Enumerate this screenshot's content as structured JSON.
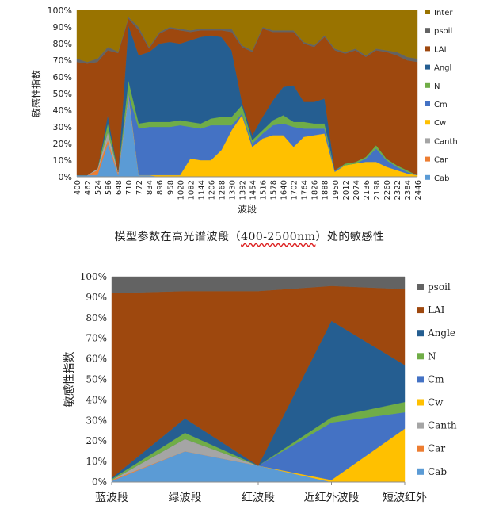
{
  "caption": {
    "before": "模型参数在高光谱波段（",
    "range": "400-2500nm",
    "after": "）处的敏感性"
  },
  "chart_data": [
    {
      "type": "area",
      "stacked": true,
      "title": "",
      "xlabel": "波段",
      "ylabel": "敏感性指数",
      "ylim": [
        0,
        100
      ],
      "y_ticks": [
        "0%",
        "10%",
        "20%",
        "30%",
        "40%",
        "50%",
        "60%",
        "70%",
        "80%",
        "90%",
        "100%"
      ],
      "x": [
        400,
        462,
        524,
        586,
        648,
        710,
        772,
        834,
        896,
        958,
        1020,
        1082,
        1144,
        1206,
        1268,
        1330,
        1392,
        1454,
        1516,
        1578,
        1640,
        1702,
        1764,
        1826,
        1888,
        1950,
        2012,
        2074,
        2136,
        2198,
        2260,
        2322,
        2384,
        2446
      ],
      "x_tick_labels": [
        "400",
        "462",
        "524",
        "586",
        "648",
        "710",
        "772",
        "834",
        "896",
        "958",
        "1020",
        "1082",
        "1144",
        "1206",
        "1268",
        "1330",
        "1392",
        "1454",
        "1516",
        "1578",
        "1640",
        "1702",
        "1764",
        "1826",
        "1888",
        "1950",
        "2012",
        "2074",
        "2136",
        "2198",
        "2260",
        "2322",
        "2384",
        "2446"
      ],
      "legend_position": "right",
      "series": [
        {
          "name": "Cab",
          "color": "#5b9bd5",
          "values": [
            1,
            1,
            1,
            20,
            1,
            48,
            1,
            1,
            0,
            0,
            0,
            0,
            0,
            0,
            0,
            0,
            0,
            0,
            0,
            0,
            0,
            0,
            0,
            0,
            0,
            0,
            0,
            0,
            0,
            0,
            0,
            0,
            0,
            0
          ]
        },
        {
          "name": "Car",
          "color": "#ed7d31",
          "values": [
            0,
            0,
            3,
            2,
            1,
            0,
            0,
            0,
            0,
            0,
            0,
            0,
            0,
            0,
            0,
            0,
            0,
            0,
            0,
            0,
            0,
            0,
            0,
            0,
            0,
            0,
            0,
            0,
            0,
            0,
            0,
            0,
            0,
            0
          ]
        },
        {
          "name": "Canth",
          "color": "#a5a5a5",
          "values": [
            0,
            0,
            1,
            5,
            1,
            2,
            0,
            0,
            0,
            0,
            0,
            0,
            0,
            0,
            0,
            0,
            0,
            0,
            0,
            0,
            0,
            0,
            0,
            0,
            0,
            0,
            0,
            0,
            0,
            0,
            0,
            0,
            0,
            0
          ]
        },
        {
          "name": "Cw",
          "color": "#ffc000",
          "values": [
            0,
            0,
            0,
            0,
            0,
            0,
            0,
            0,
            1,
            1,
            1,
            11,
            10,
            10,
            16,
            28,
            37,
            18,
            23,
            25,
            25,
            18,
            24,
            25,
            26,
            3,
            7,
            8,
            9,
            9,
            6,
            4,
            2,
            1
          ]
        },
        {
          "name": "Cm",
          "color": "#4472c4",
          "values": [
            0,
            0,
            0,
            0,
            0,
            0,
            28,
            29,
            29,
            29,
            30,
            19,
            19,
            21,
            15,
            3,
            1,
            2,
            3,
            6,
            7,
            12,
            5,
            4,
            3,
            1,
            0,
            0,
            2,
            8,
            4,
            2,
            1,
            0
          ]
        },
        {
          "name": "N",
          "color": "#70ad47",
          "values": [
            0,
            0,
            0,
            5,
            0,
            8,
            3,
            3,
            3,
            3,
            3,
            3,
            3,
            4,
            5,
            5,
            5,
            2,
            2,
            3,
            5,
            3,
            4,
            3,
            3,
            0,
            1,
            1,
            1,
            2,
            1,
            1,
            1,
            0
          ]
        },
        {
          "name": "Angl",
          "color": "#255e91",
          "values": [
            0,
            0,
            0,
            5,
            0,
            33,
            41,
            42,
            47,
            48,
            46,
            49,
            52,
            50,
            48,
            40,
            2,
            3,
            8,
            12,
            17,
            22,
            12,
            13,
            15,
            0,
            0,
            0,
            0,
            0,
            0,
            0,
            0,
            0
          ]
        },
        {
          "name": "LAI",
          "color": "#9e480e",
          "values": [
            68,
            67,
            64,
            39,
            72,
            4,
            15,
            2,
            6,
            8,
            8,
            5,
            4,
            3,
            4,
            11,
            33,
            50,
            53,
            41,
            33,
            32,
            35,
            33,
            37,
            72,
            66,
            67,
            60,
            57,
            64,
            66,
            66,
            68
          ]
        },
        {
          "name": "psoil",
          "color": "#636363",
          "values": [
            2,
            1,
            2,
            2,
            1,
            1,
            2,
            1,
            1,
            1,
            1,
            1,
            1,
            1,
            1,
            2,
            1,
            1,
            1,
            1,
            1,
            1,
            1,
            1,
            1,
            1,
            1,
            1,
            1,
            1,
            1,
            2,
            2,
            2
          ]
        },
        {
          "name": "Inter",
          "color": "#997300",
          "values": [
            29,
            31,
            29,
            22,
            25,
            4,
            10,
            22,
            13,
            10,
            11,
            12,
            11,
            11,
            11,
            11,
            21,
            24,
            10,
            12,
            12,
            12,
            19,
            21,
            15,
            23,
            25,
            23,
            27,
            23,
            24,
            25,
            28,
            29
          ]
        }
      ]
    },
    {
      "type": "area",
      "stacked": true,
      "title": "",
      "xlabel": "",
      "ylabel": "敏感性指数",
      "ylim": [
        0,
        100
      ],
      "y_ticks": [
        "0%",
        "10%",
        "20%",
        "30%",
        "40%",
        "50%",
        "60%",
        "70%",
        "80%",
        "90%",
        "100%"
      ],
      "categories": [
        "蓝波段",
        "绿波段",
        "红波段",
        "近红外波段",
        "短波红外"
      ],
      "legend_position": "right",
      "series": [
        {
          "name": "Cab",
          "color": "#5b9bd5",
          "values": [
            0.5,
            15,
            8,
            0,
            0
          ]
        },
        {
          "name": "Car",
          "color": "#ed7d31",
          "values": [
            0.5,
            0,
            0,
            0,
            0
          ]
        },
        {
          "name": "Canth",
          "color": "#a5a5a5",
          "values": [
            0,
            6,
            0,
            0,
            0
          ]
        },
        {
          "name": "Cw",
          "color": "#ffc000",
          "values": [
            0,
            0,
            0,
            1,
            26
          ]
        },
        {
          "name": "Cm",
          "color": "#4472c4",
          "values": [
            0,
            0,
            0,
            28,
            8
          ]
        },
        {
          "name": "N",
          "color": "#70ad47",
          "values": [
            0.5,
            3,
            0,
            2.5,
            5
          ]
        },
        {
          "name": "Angle",
          "color": "#255e91",
          "values": [
            0.5,
            7,
            0,
            47,
            18
          ]
        },
        {
          "name": "LAI",
          "color": "#9e480e",
          "values": [
            90,
            62,
            85,
            17,
            37
          ]
        },
        {
          "name": "psoil",
          "color": "#636363",
          "values": [
            8,
            7,
            7,
            4.5,
            6
          ]
        }
      ]
    }
  ]
}
